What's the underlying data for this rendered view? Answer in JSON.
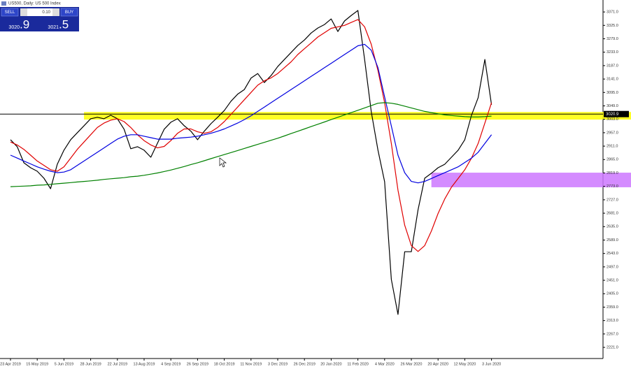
{
  "header": {
    "title": "US500, Daily: US 500 Index"
  },
  "trade_panel": {
    "sell": "SELL",
    "lot": "0.10",
    "buy": "BUY",
    "sell_big": "3020",
    "sell_small": ".9",
    "buy_big": "3021",
    "buy_small": ".5"
  },
  "chart_data": {
    "type": "line",
    "categories": [
      "23 Apr 2019",
      null,
      null,
      null,
      "15 May 2019",
      null,
      null,
      null,
      "5 Jun 2019",
      null,
      null,
      null,
      "28 Jun 2019",
      null,
      null,
      null,
      "22 Jul 2019",
      null,
      null,
      null,
      "13 Aug 2019",
      null,
      null,
      null,
      "4 Sep 2019",
      null,
      null,
      null,
      "26 Sep 2019",
      null,
      null,
      null,
      "18 Oct 2019",
      null,
      null,
      null,
      "11 Nov 2019",
      null,
      null,
      null,
      "3 Dec 2019",
      null,
      null,
      null,
      "26 Dec 2019",
      null,
      null,
      null,
      "20 Jan 2020",
      null,
      null,
      null,
      "11 Feb 2020",
      null,
      null,
      null,
      "4 Mar 2020",
      null,
      null,
      null,
      "26 Mar 2020",
      null,
      null,
      null,
      "20 Apr 2020",
      null,
      null,
      null,
      "12 May 2020",
      null,
      null,
      null,
      "3 Jun 2020"
    ],
    "series": [
      {
        "color": "#000000",
        "width": 1.2,
        "values": [
          2933,
          2909,
          2854,
          2837,
          2825,
          2801,
          2765,
          2849,
          2897,
          2933,
          2957,
          2981,
          3005,
          3010,
          3005,
          3017,
          3005,
          2969,
          2902,
          2909,
          2897,
          2873,
          2921,
          2969,
          2993,
          3005,
          2981,
          2962,
          2933,
          2962,
          2988,
          3010,
          3033,
          3065,
          3089,
          3105,
          3144,
          3160,
          3129,
          3153,
          3184,
          3208,
          3232,
          3256,
          3275,
          3299,
          3316,
          3328,
          3347,
          3304,
          3340,
          3359,
          3376,
          3208,
          3029,
          2897,
          2789,
          2454,
          2334,
          2549,
          2549,
          2693,
          2801,
          2818,
          2837,
          2849,
          2873,
          2897,
          2933,
          3017,
          3077,
          3208,
          3053
        ]
      },
      {
        "color": "#e00000",
        "width": 1.2,
        "values": [
          2925,
          2915,
          2900,
          2880,
          2860,
          2845,
          2830,
          2825,
          2840,
          2870,
          2900,
          2925,
          2950,
          2975,
          2990,
          3000,
          3005,
          2995,
          2975,
          2950,
          2930,
          2915,
          2905,
          2910,
          2930,
          2955,
          2970,
          2970,
          2960,
          2955,
          2960,
          2975,
          2995,
          3020,
          3045,
          3070,
          3095,
          3120,
          3135,
          3145,
          3160,
          3180,
          3200,
          3225,
          3245,
          3265,
          3285,
          3300,
          3315,
          3320,
          3325,
          3335,
          3345,
          3320,
          3260,
          3170,
          3060,
          2920,
          2760,
          2640,
          2570,
          2550,
          2570,
          2620,
          2680,
          2730,
          2770,
          2800,
          2830,
          2870,
          2920,
          2990,
          3060
        ]
      },
      {
        "color": "#0000e0",
        "width": 1.2,
        "values": [
          2880,
          2870,
          2860,
          2850,
          2840,
          2832,
          2825,
          2820,
          2822,
          2830,
          2845,
          2860,
          2875,
          2890,
          2905,
          2920,
          2935,
          2945,
          2950,
          2950,
          2945,
          2940,
          2935,
          2935,
          2935,
          2938,
          2940,
          2942,
          2945,
          2950,
          2955,
          2962,
          2970,
          2980,
          2990,
          3002,
          3015,
          3030,
          3045,
          3060,
          3075,
          3090,
          3105,
          3120,
          3135,
          3150,
          3165,
          3180,
          3195,
          3210,
          3225,
          3240,
          3255,
          3260,
          3240,
          3180,
          3080,
          2980,
          2880,
          2820,
          2790,
          2785,
          2790,
          2800,
          2810,
          2820,
          2830,
          2840,
          2855,
          2870,
          2890,
          2920,
          2950
        ]
      },
      {
        "color": "#008000",
        "width": 1.2,
        "values": [
          2772,
          2773,
          2774,
          2775,
          2777,
          2778,
          2780,
          2782,
          2784,
          2786,
          2788,
          2790,
          2792,
          2794,
          2797,
          2799,
          2801,
          2803,
          2806,
          2808,
          2811,
          2815,
          2819,
          2824,
          2829,
          2835,
          2841,
          2848,
          2854,
          2861,
          2868,
          2875,
          2882,
          2889,
          2896,
          2903,
          2910,
          2917,
          2924,
          2931,
          2938,
          2946,
          2954,
          2962,
          2970,
          2978,
          2986,
          2994,
          3002,
          3010,
          3018,
          3026,
          3034,
          3042,
          3050,
          3058,
          3060,
          3058,
          3054,
          3048,
          3042,
          3036,
          3030,
          3026,
          3022,
          3018,
          3016,
          3014,
          3012,
          3011,
          3011,
          3012,
          3014
        ]
      }
    ],
    "zones": [
      {
        "from": 3002,
        "to": 3028,
        "start": 11,
        "color": "#ffff00"
      },
      {
        "from": 2770,
        "to": 2820,
        "start": 63,
        "color": "#cc77ff"
      }
    ],
    "bid_line": 3020.9,
    "ylim": [
      2190,
      3412
    ],
    "yticks": [
      {
        "value": 3371,
        "label": "3371.0"
      },
      {
        "value": 3325,
        "label": "3325.0"
      },
      {
        "value": 3279,
        "label": "3279.0"
      },
      {
        "value": 3233,
        "label": "3233.0"
      },
      {
        "value": 3187,
        "label": "3187.0"
      },
      {
        "value": 3141,
        "label": "3141.0"
      },
      {
        "value": 3095,
        "label": "3095.0"
      },
      {
        "value": 3049,
        "label": "3049.0"
      },
      {
        "value": 3003,
        "label": "3003.0"
      },
      {
        "value": 2957,
        "label": "2957.0"
      },
      {
        "value": 2911,
        "label": "2911.0"
      },
      {
        "value": 2865,
        "label": "2865.0"
      },
      {
        "value": 2819,
        "label": "2819.0"
      },
      {
        "value": 2773,
        "label": "2773.0"
      },
      {
        "value": 2727,
        "label": "2727.0"
      },
      {
        "value": 2681,
        "label": "2681.0"
      },
      {
        "value": 2635,
        "label": "2635.0"
      },
      {
        "value": 2589,
        "label": "2589.0"
      },
      {
        "value": 2543,
        "label": "2543.0"
      },
      {
        "value": 2497,
        "label": "2497.0"
      },
      {
        "value": 2451,
        "label": "2451.0"
      },
      {
        "value": 2405,
        "label": "2405.0"
      },
      {
        "value": 2359,
        "label": "2359.0"
      },
      {
        "value": 2313,
        "label": "2313.0"
      },
      {
        "value": 2267,
        "label": "2267.0"
      },
      {
        "value": 2221,
        "label": "2221.0"
      }
    ]
  }
}
